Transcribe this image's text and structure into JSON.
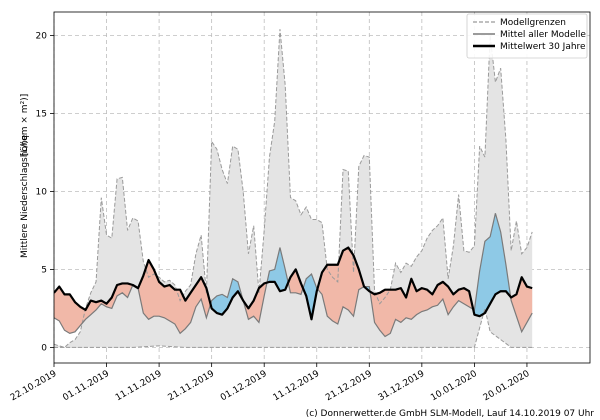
{
  "chart_data": {
    "type": "area",
    "ylabel": "Mittlere Niederschlagshöhe [ L / (qm × m²) ]",
    "ylabel_main": "Mittlere Niederschlagshöhe",
    "ylabel_unit": "[L/(qm × m²)]",
    "ylim": [
      -1,
      21.5
    ],
    "y_ticks": [
      0,
      5,
      10,
      15,
      20
    ],
    "x_tick_labels": [
      "22.10.2019",
      "01.11.2019",
      "11.11.2019",
      "21.11.2019",
      "01.12.2019",
      "11.12.2019",
      "21.12.2019",
      "31.12.2019",
      "10.01.2020",
      "20.01.2020"
    ],
    "x_tick_days": [
      0,
      10,
      20,
      30,
      40,
      50,
      60,
      70,
      80,
      90
    ],
    "x_range_days": [
      0,
      102
    ],
    "grid": true,
    "legend_position": "top-right",
    "legend": [
      "Modellgrenzen",
      "Mittel aller Modelle",
      "Mittelwert 30 Jahre"
    ],
    "colors": {
      "envelope_fill": "#e4e4e4",
      "envelope_line": "#9a9a9a",
      "model_mean": "#7a7a7a",
      "climate": "#000000",
      "above_fill": "#f1b8a8",
      "below_fill": "#8ec9e6",
      "grid": "#bdbdbd"
    },
    "series": [
      {
        "name": "Modellgrenzen",
        "role": "upper",
        "points": [
          [
            0,
            0.2
          ],
          [
            1,
            0.1
          ],
          [
            2,
            0.0
          ],
          [
            3,
            0.3
          ],
          [
            4,
            0.5
          ],
          [
            5,
            1.0
          ],
          [
            6,
            2.5
          ],
          [
            7,
            3.5
          ],
          [
            8,
            4.2
          ],
          [
            9,
            9.6
          ],
          [
            10,
            7.2
          ],
          [
            11,
            7.0
          ],
          [
            12,
            10.8
          ],
          [
            13,
            10.9
          ],
          [
            14,
            7.5
          ],
          [
            15,
            8.3
          ],
          [
            16,
            8.1
          ],
          [
            17,
            5.5
          ],
          [
            18,
            4.5
          ],
          [
            19,
            4.7
          ],
          [
            20,
            4.5
          ],
          [
            21,
            4.2
          ],
          [
            22,
            4.3
          ],
          [
            23,
            4.0
          ],
          [
            24,
            3.0
          ],
          [
            25,
            3.6
          ],
          [
            26,
            4.0
          ],
          [
            27,
            6.0
          ],
          [
            28,
            7.2
          ],
          [
            29,
            3.5
          ],
          [
            30,
            13.2
          ],
          [
            31,
            12.7
          ],
          [
            32,
            11.4
          ],
          [
            33,
            10.5
          ],
          [
            34,
            12.9
          ],
          [
            35,
            12.7
          ],
          [
            36,
            10.0
          ],
          [
            37,
            6.0
          ],
          [
            38,
            7.8
          ],
          [
            39,
            3.5
          ],
          [
            40,
            7.5
          ],
          [
            41,
            12.2
          ],
          [
            42,
            14.5
          ],
          [
            43,
            20.4
          ],
          [
            44,
            16.8
          ],
          [
            45,
            9.6
          ],
          [
            46,
            9.4
          ],
          [
            47,
            8.5
          ],
          [
            48,
            9.0
          ],
          [
            49,
            8.2
          ],
          [
            50,
            8.2
          ],
          [
            51,
            8.0
          ],
          [
            52,
            5.0
          ],
          [
            53,
            4.5
          ],
          [
            54,
            4.2
          ],
          [
            55,
            11.4
          ],
          [
            56,
            11.3
          ],
          [
            57,
            4.8
          ],
          [
            58,
            11.6
          ],
          [
            59,
            12.3
          ],
          [
            60,
            12.2
          ],
          [
            61,
            3.6
          ],
          [
            62,
            2.8
          ],
          [
            63,
            3.2
          ],
          [
            64,
            3.7
          ],
          [
            65,
            5.4
          ],
          [
            66,
            4.8
          ],
          [
            67,
            5.4
          ],
          [
            68,
            5.2
          ],
          [
            69,
            5.8
          ],
          [
            70,
            6.2
          ],
          [
            71,
            7.0
          ],
          [
            72,
            7.5
          ],
          [
            73,
            7.8
          ],
          [
            74,
            8.3
          ],
          [
            75,
            4.4
          ],
          [
            76,
            6.5
          ],
          [
            77,
            9.8
          ],
          [
            78,
            6.2
          ],
          [
            79,
            6.1
          ],
          [
            80,
            6.5
          ],
          [
            81,
            12.9
          ],
          [
            82,
            12.2
          ],
          [
            83,
            20.0
          ],
          [
            84,
            17.0
          ],
          [
            85,
            17.9
          ],
          [
            86,
            13.3
          ],
          [
            87,
            6.2
          ],
          [
            88,
            8.1
          ],
          [
            89,
            6.0
          ],
          [
            90,
            6.4
          ],
          [
            91,
            7.4
          ]
        ]
      },
      {
        "name": "Modellgrenzen",
        "role": "lower",
        "points": [
          [
            0,
            0.0
          ],
          [
            5,
            0.0
          ],
          [
            10,
            0.0
          ],
          [
            15,
            0.0
          ],
          [
            20,
            0.1
          ],
          [
            25,
            0.0
          ],
          [
            30,
            0.0
          ],
          [
            35,
            0.0
          ],
          [
            40,
            0.0
          ],
          [
            45,
            0.0
          ],
          [
            50,
            0.0
          ],
          [
            55,
            0.0
          ],
          [
            60,
            0.0
          ],
          [
            65,
            0.0
          ],
          [
            70,
            0.0
          ],
          [
            75,
            0.0
          ],
          [
            80,
            0.0
          ],
          [
            82,
            2.5
          ],
          [
            83,
            1.0
          ],
          [
            85,
            0.5
          ],
          [
            87,
            0.0
          ],
          [
            91,
            0.0
          ]
        ]
      },
      {
        "name": "Mittel aller Modelle",
        "role": "model_mean",
        "points": [
          [
            0,
            1.9
          ],
          [
            1,
            1.7
          ],
          [
            2,
            1.1
          ],
          [
            3,
            0.9
          ],
          [
            4,
            1.0
          ],
          [
            5,
            1.4
          ],
          [
            6,
            1.8
          ],
          [
            7,
            2.1
          ],
          [
            8,
            2.4
          ],
          [
            9,
            2.8
          ],
          [
            10,
            2.6
          ],
          [
            11,
            2.5
          ],
          [
            12,
            3.3
          ],
          [
            13,
            3.5
          ],
          [
            14,
            3.2
          ],
          [
            15,
            4.0
          ],
          [
            16,
            3.8
          ],
          [
            17,
            2.2
          ],
          [
            18,
            1.8
          ],
          [
            19,
            2.0
          ],
          [
            20,
            2.0
          ],
          [
            21,
            1.9
          ],
          [
            22,
            1.7
          ],
          [
            23,
            1.5
          ],
          [
            24,
            0.9
          ],
          [
            25,
            1.2
          ],
          [
            26,
            1.6
          ],
          [
            27,
            2.6
          ],
          [
            28,
            3.1
          ],
          [
            29,
            1.9
          ],
          [
            30,
            3.0
          ],
          [
            31,
            3.3
          ],
          [
            32,
            3.4
          ],
          [
            33,
            3.2
          ],
          [
            34,
            4.4
          ],
          [
            35,
            4.2
          ],
          [
            36,
            3.0
          ],
          [
            37,
            1.8
          ],
          [
            38,
            2.0
          ],
          [
            39,
            1.6
          ],
          [
            40,
            3.3
          ],
          [
            41,
            4.9
          ],
          [
            42,
            5.0
          ],
          [
            43,
            6.4
          ],
          [
            44,
            5.0
          ],
          [
            45,
            3.5
          ],
          [
            46,
            3.5
          ],
          [
            47,
            3.4
          ],
          [
            48,
            4.4
          ],
          [
            49,
            4.7
          ],
          [
            50,
            3.8
          ],
          [
            51,
            3.4
          ],
          [
            52,
            2.0
          ],
          [
            53,
            1.7
          ],
          [
            54,
            1.5
          ],
          [
            55,
            2.6
          ],
          [
            56,
            2.4
          ],
          [
            57,
            2.0
          ],
          [
            58,
            3.7
          ],
          [
            59,
            3.9
          ],
          [
            60,
            3.9
          ],
          [
            61,
            1.6
          ],
          [
            62,
            1.1
          ],
          [
            63,
            0.7
          ],
          [
            64,
            0.9
          ],
          [
            65,
            1.8
          ],
          [
            66,
            1.6
          ],
          [
            67,
            1.9
          ],
          [
            68,
            1.8
          ],
          [
            69,
            2.1
          ],
          [
            70,
            2.3
          ],
          [
            71,
            2.4
          ],
          [
            72,
            2.6
          ],
          [
            73,
            2.7
          ],
          [
            74,
            3.1
          ],
          [
            75,
            2.1
          ],
          [
            76,
            2.6
          ],
          [
            77,
            3.0
          ],
          [
            78,
            2.8
          ],
          [
            79,
            2.6
          ],
          [
            80,
            2.4
          ],
          [
            81,
            4.9
          ],
          [
            82,
            6.8
          ],
          [
            83,
            7.1
          ],
          [
            84,
            8.6
          ],
          [
            85,
            7.4
          ],
          [
            86,
            5.3
          ],
          [
            87,
            3.0
          ],
          [
            88,
            2.0
          ],
          [
            89,
            1.0
          ],
          [
            90,
            1.6
          ],
          [
            91,
            2.2
          ]
        ]
      },
      {
        "name": "Mittelwert 30 Jahre",
        "role": "climate",
        "points": [
          [
            0,
            3.5
          ],
          [
            1,
            3.9
          ],
          [
            2,
            3.4
          ],
          [
            3,
            3.4
          ],
          [
            4,
            2.9
          ],
          [
            5,
            2.6
          ],
          [
            6,
            2.4
          ],
          [
            7,
            3.0
          ],
          [
            8,
            2.9
          ],
          [
            9,
            3.0
          ],
          [
            10,
            2.8
          ],
          [
            11,
            3.2
          ],
          [
            12,
            4.0
          ],
          [
            13,
            4.1
          ],
          [
            14,
            4.1
          ],
          [
            15,
            4.0
          ],
          [
            16,
            3.8
          ],
          [
            17,
            4.6
          ],
          [
            18,
            5.6
          ],
          [
            19,
            5.0
          ],
          [
            20,
            4.2
          ],
          [
            21,
            3.9
          ],
          [
            22,
            4.0
          ],
          [
            23,
            3.7
          ],
          [
            24,
            3.7
          ],
          [
            25,
            3.0
          ],
          [
            26,
            3.5
          ],
          [
            27,
            4.0
          ],
          [
            28,
            4.5
          ],
          [
            29,
            3.8
          ],
          [
            30,
            2.5
          ],
          [
            31,
            2.2
          ],
          [
            32,
            2.1
          ],
          [
            33,
            2.5
          ],
          [
            34,
            3.2
          ],
          [
            35,
            3.6
          ],
          [
            36,
            3.0
          ],
          [
            37,
            2.5
          ],
          [
            38,
            3.0
          ],
          [
            39,
            3.8
          ],
          [
            40,
            4.1
          ],
          [
            41,
            4.2
          ],
          [
            42,
            4.2
          ],
          [
            43,
            3.6
          ],
          [
            44,
            3.7
          ],
          [
            45,
            4.5
          ],
          [
            46,
            5.0
          ],
          [
            47,
            4.1
          ],
          [
            48,
            3.3
          ],
          [
            49,
            1.8
          ],
          [
            50,
            3.6
          ],
          [
            51,
            4.8
          ],
          [
            52,
            5.3
          ],
          [
            53,
            5.3
          ],
          [
            54,
            5.3
          ],
          [
            55,
            6.2
          ],
          [
            56,
            6.4
          ],
          [
            57,
            5.9
          ],
          [
            58,
            5.0
          ],
          [
            59,
            3.9
          ],
          [
            60,
            3.6
          ],
          [
            61,
            3.4
          ],
          [
            62,
            3.5
          ],
          [
            63,
            3.7
          ],
          [
            64,
            3.7
          ],
          [
            65,
            3.7
          ],
          [
            66,
            3.8
          ],
          [
            67,
            3.2
          ],
          [
            68,
            4.4
          ],
          [
            69,
            3.6
          ],
          [
            70,
            3.8
          ],
          [
            71,
            3.7
          ],
          [
            72,
            3.4
          ],
          [
            73,
            4.0
          ],
          [
            74,
            4.2
          ],
          [
            75,
            3.9
          ],
          [
            76,
            3.4
          ],
          [
            77,
            3.7
          ],
          [
            78,
            3.8
          ],
          [
            79,
            3.6
          ],
          [
            80,
            2.1
          ],
          [
            81,
            2.0
          ],
          [
            82,
            2.2
          ],
          [
            83,
            2.8
          ],
          [
            84,
            3.4
          ],
          [
            85,
            3.6
          ],
          [
            86,
            3.6
          ],
          [
            87,
            3.2
          ],
          [
            88,
            3.4
          ],
          [
            89,
            4.5
          ],
          [
            90,
            3.9
          ],
          [
            91,
            3.8
          ]
        ]
      }
    ]
  },
  "footer": {
    "text": "(c) Donnerwetter.de GmbH SLM-Modell, Lauf 14.10.2019 07 Uhr"
  }
}
